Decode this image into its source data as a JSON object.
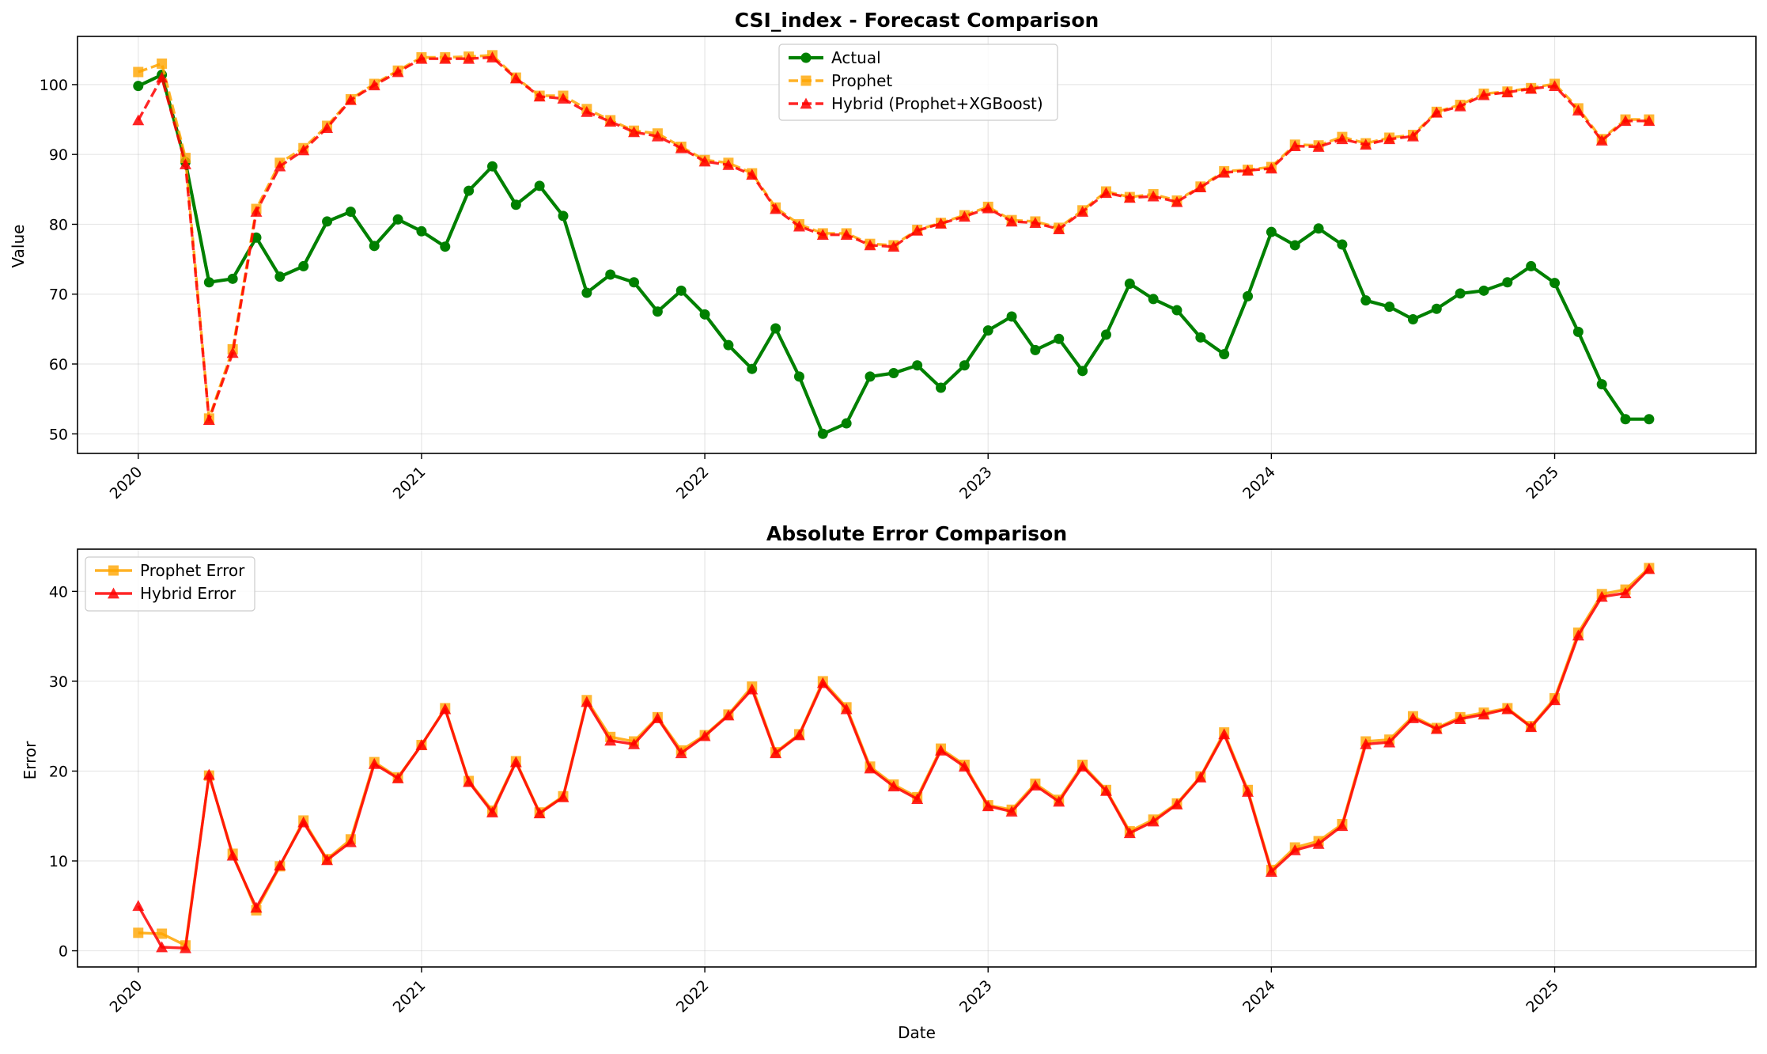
{
  "chart_data": [
    {
      "type": "line",
      "title": "CSI_index - Forecast Comparison",
      "xlabel": "",
      "ylabel": "Value",
      "x_tick_labels": [
        "2020",
        "2021",
        "2022",
        "2023",
        "2024",
        "2025"
      ],
      "y_tick_labels": [
        "50",
        "60",
        "70",
        "80",
        "90",
        "100"
      ],
      "xlim": [
        "2019-10-14",
        "2025-09-17"
      ],
      "ylim": [
        47.2,
        106.9
      ],
      "grid": true,
      "legend_position": "top-center",
      "x": [
        "2020-01",
        "2020-02",
        "2020-03",
        "2020-04",
        "2020-05",
        "2020-06",
        "2020-07",
        "2020-08",
        "2020-09",
        "2020-10",
        "2020-11",
        "2020-12",
        "2021-01",
        "2021-02",
        "2021-03",
        "2021-04",
        "2021-05",
        "2021-06",
        "2021-07",
        "2021-08",
        "2021-09",
        "2021-10",
        "2021-11",
        "2021-12",
        "2022-01",
        "2022-02",
        "2022-03",
        "2022-04",
        "2022-05",
        "2022-06",
        "2022-07",
        "2022-08",
        "2022-09",
        "2022-10",
        "2022-11",
        "2022-12",
        "2023-01",
        "2023-02",
        "2023-03",
        "2023-04",
        "2023-05",
        "2023-06",
        "2023-07",
        "2023-08",
        "2023-09",
        "2023-10",
        "2023-11",
        "2023-12",
        "2024-01",
        "2024-02",
        "2024-03",
        "2024-04",
        "2024-05",
        "2024-06",
        "2024-07",
        "2024-08",
        "2024-09",
        "2024-10",
        "2024-11",
        "2024-12",
        "2025-01",
        "2025-02",
        "2025-03",
        "2025-04",
        "2025-05"
      ],
      "series": [
        {
          "name": "Actual",
          "color": "#008000",
          "style": "solid",
          "marker": "circle",
          "values": [
            99.8,
            101.4,
            88.9,
            71.7,
            72.2,
            78.1,
            72.5,
            74.0,
            80.4,
            81.8,
            76.9,
            80.7,
            79.0,
            76.8,
            84.8,
            88.3,
            82.8,
            85.5,
            81.2,
            70.2,
            72.8,
            71.7,
            67.5,
            70.5,
            67.1,
            62.7,
            59.3,
            65.1,
            58.2,
            50.0,
            51.5,
            58.2,
            58.7,
            59.8,
            56.6,
            59.8,
            64.8,
            66.8,
            62.0,
            63.6,
            59.0,
            64.2,
            71.5,
            69.3,
            67.7,
            63.8,
            61.4,
            69.7,
            78.9,
            77.0,
            79.4,
            77.1,
            69.1,
            68.2,
            66.4,
            67.9,
            70.1,
            70.5,
            71.7,
            74.0,
            71.6,
            64.6,
            57.1,
            52.1,
            52.1
          ]
        },
        {
          "name": "Prophet",
          "color": "#ffa500",
          "style": "dashed",
          "marker": "square",
          "values": [
            101.8,
            103.0,
            89.5,
            52.2,
            62.1,
            82.2,
            88.8,
            90.9,
            94.1,
            97.9,
            100.1,
            102.0,
            103.9,
            103.9,
            104.0,
            104.2,
            101.0,
            98.4,
            98.4,
            96.5,
            94.9,
            93.4,
            93.0,
            91.1,
            89.2,
            88.8,
            87.3,
            82.4,
            80.0,
            78.7,
            78.7,
            77.2,
            77.0,
            79.2,
            80.2,
            81.3,
            82.5,
            80.6,
            80.4,
            79.5,
            82.0,
            84.7,
            83.9,
            84.3,
            83.4,
            85.4,
            87.6,
            87.8,
            88.2,
            91.4,
            91.3,
            92.5,
            91.6,
            92.4,
            92.8,
            96.1,
            97.1,
            98.7,
            99.0,
            99.5,
            100.1,
            96.6,
            92.2,
            95.0,
            95.0
          ]
        },
        {
          "name": "Hybrid (Prophet+XGBoost)",
          "color": "#ff0000",
          "style": "dashed",
          "marker": "triangle",
          "values": [
            94.9,
            101.0,
            88.6,
            52.0,
            61.6,
            81.8,
            88.3,
            90.6,
            93.8,
            97.8,
            99.9,
            101.8,
            103.7,
            103.7,
            103.7,
            103.9,
            100.9,
            98.3,
            98.0,
            96.1,
            94.7,
            93.2,
            92.6,
            90.9,
            89.0,
            88.5,
            87.1,
            82.2,
            79.7,
            78.5,
            78.5,
            77.0,
            76.8,
            79.1,
            80.1,
            81.1,
            82.3,
            80.4,
            80.2,
            79.3,
            81.8,
            84.5,
            83.8,
            84.0,
            83.2,
            85.3,
            87.4,
            87.7,
            88.0,
            91.2,
            91.1,
            92.2,
            91.4,
            92.2,
            92.6,
            96.0,
            96.9,
            98.5,
            98.9,
            99.4,
            99.8,
            96.3,
            92.0,
            94.8,
            94.8
          ]
        }
      ]
    },
    {
      "type": "line",
      "title": "Absolute Error Comparison",
      "xlabel": "Date",
      "ylabel": "Error",
      "x_tick_labels": [
        "2020",
        "2021",
        "2022",
        "2023",
        "2024",
        "2025"
      ],
      "y_tick_labels": [
        "0",
        "10",
        "20",
        "30",
        "40"
      ],
      "xlim": [
        "2019-10-14",
        "2025-09-17"
      ],
      "ylim": [
        -1.8,
        44.7
      ],
      "grid": true,
      "legend_position": "top-left",
      "x": [
        "2020-01",
        "2020-02",
        "2020-03",
        "2020-04",
        "2020-05",
        "2020-06",
        "2020-07",
        "2020-08",
        "2020-09",
        "2020-10",
        "2020-11",
        "2020-12",
        "2021-01",
        "2021-02",
        "2021-03",
        "2021-04",
        "2021-05",
        "2021-06",
        "2021-07",
        "2021-08",
        "2021-09",
        "2021-10",
        "2021-11",
        "2021-12",
        "2022-01",
        "2022-02",
        "2022-03",
        "2022-04",
        "2022-05",
        "2022-06",
        "2022-07",
        "2022-08",
        "2022-09",
        "2022-10",
        "2022-11",
        "2022-12",
        "2023-01",
        "2023-02",
        "2023-03",
        "2023-04",
        "2023-05",
        "2023-06",
        "2023-07",
        "2023-08",
        "2023-09",
        "2023-10",
        "2023-11",
        "2023-12",
        "2024-01",
        "2024-02",
        "2024-03",
        "2024-04",
        "2024-05",
        "2024-06",
        "2024-07",
        "2024-08",
        "2024-09",
        "2024-10",
        "2024-11",
        "2024-12",
        "2025-01",
        "2025-02",
        "2025-03",
        "2025-04",
        "2025-05"
      ],
      "series": [
        {
          "name": "Prophet Error",
          "color": "#ffa500",
          "style": "solid",
          "marker": "square",
          "values": [
            2.0,
            1.9,
            0.6,
            19.5,
            10.8,
            4.5,
            9.4,
            14.5,
            10.2,
            12.4,
            21.0,
            19.3,
            22.9,
            27.0,
            18.9,
            15.6,
            21.1,
            15.4,
            17.2,
            27.9,
            23.8,
            23.3,
            26.0,
            22.3,
            24.0,
            26.3,
            29.4,
            22.1,
            24.1,
            30.0,
            27.1,
            20.5,
            18.5,
            17.1,
            22.5,
            20.7,
            16.2,
            15.7,
            18.6,
            16.8,
            20.7,
            17.9,
            13.3,
            14.6,
            16.4,
            19.4,
            24.3,
            17.9,
            9.0,
            11.5,
            12.2,
            14.1,
            23.3,
            23.5,
            26.1,
            24.8,
            26.0,
            26.5,
            27.0,
            25.0,
            28.1,
            35.4,
            39.7,
            40.2,
            42.6
          ]
        },
        {
          "name": "Hybrid Error",
          "color": "#ff0000",
          "style": "solid",
          "marker": "triangle",
          "values": [
            5.0,
            0.4,
            0.3,
            19.6,
            10.6,
            4.8,
            9.5,
            14.3,
            10.1,
            12.1,
            20.8,
            19.2,
            22.9,
            26.9,
            18.8,
            15.4,
            21.0,
            15.3,
            17.1,
            27.7,
            23.4,
            23.0,
            25.9,
            22.0,
            23.9,
            26.2,
            29.1,
            22.0,
            24.0,
            29.8,
            26.9,
            20.3,
            18.3,
            16.9,
            22.3,
            20.5,
            16.1,
            15.5,
            18.4,
            16.6,
            20.5,
            17.8,
            13.1,
            14.4,
            16.3,
            19.3,
            24.1,
            17.7,
            8.8,
            11.2,
            11.9,
            13.9,
            23.0,
            23.2,
            25.9,
            24.7,
            25.8,
            26.3,
            26.9,
            24.9,
            27.9,
            35.1,
            39.4,
            39.8,
            42.5
          ]
        }
      ]
    }
  ]
}
